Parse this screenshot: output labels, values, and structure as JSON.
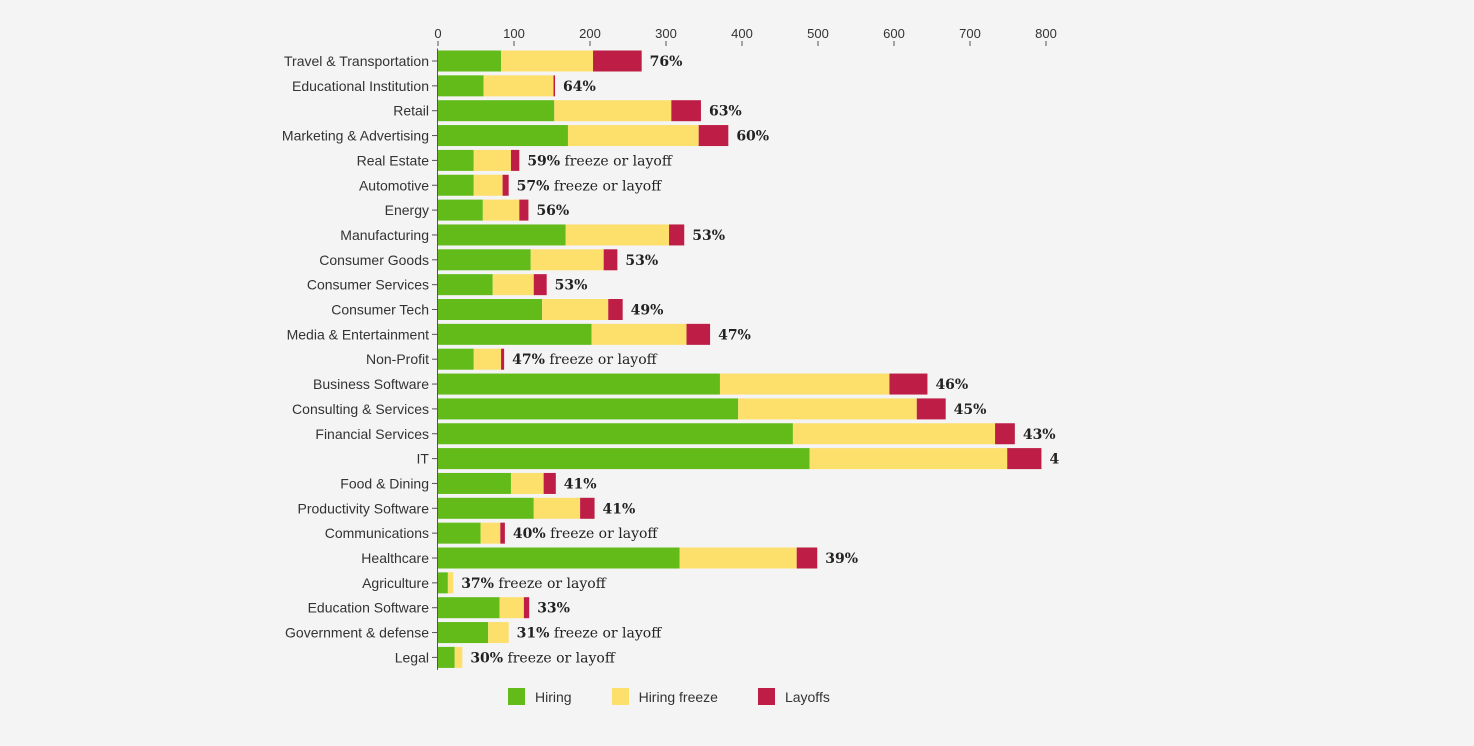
{
  "chart_data": {
    "type": "bar",
    "stacked": true,
    "orientation": "horizontal",
    "x_ticks": [
      0,
      100,
      200,
      300,
      400,
      500,
      600,
      700,
      800
    ],
    "xlim": [
      0,
      800
    ],
    "categories": [
      "Travel & Transportation",
      "Educational Institution",
      "Retail",
      "Marketing & Advertising",
      "Real Estate",
      "Automotive",
      "Energy",
      "Manufacturing",
      "Consumer Goods",
      "Consumer Services",
      "Consumer Tech",
      "Media & Entertainment",
      "Non-Profit",
      "Business Software",
      "Consulting & Services",
      "Financial Services",
      "IT",
      "Food & Dining",
      "Productivity Software",
      "Communications",
      "Healthcare",
      "Agriculture",
      "Education Software",
      "Government & defense",
      "Legal"
    ],
    "series": [
      {
        "name": "Hiring",
        "color": "#62bb19",
        "values": [
          83,
          60,
          153,
          171,
          47,
          47,
          59,
          168,
          122,
          72,
          137,
          202,
          47,
          371,
          395,
          467,
          489,
          96,
          126,
          56,
          318,
          13,
          81,
          66,
          22
        ]
      },
      {
        "name": "Hiring freeze",
        "color": "#fddf6b",
        "values": [
          121,
          92,
          154,
          172,
          49,
          38,
          48,
          136,
          96,
          54,
          87,
          125,
          36,
          223,
          235,
          266,
          260,
          43,
          61,
          26,
          154,
          7,
          32,
          27,
          10
        ]
      },
      {
        "name": "Layoffs",
        "color": "#be1e45",
        "values": [
          64,
          2,
          39,
          39,
          11,
          8,
          12,
          20,
          18,
          17,
          19,
          31,
          4,
          50,
          38,
          26,
          45,
          16,
          19,
          6,
          27,
          0,
          7,
          0,
          0
        ]
      }
    ],
    "labels": [
      {
        "pct": "76%",
        "suffix": ""
      },
      {
        "pct": "64%",
        "suffix": ""
      },
      {
        "pct": "63%",
        "suffix": ""
      },
      {
        "pct": "60%",
        "suffix": ""
      },
      {
        "pct": "59%",
        "suffix": " freeze or layoff"
      },
      {
        "pct": "57%",
        "suffix": " freeze or layoff"
      },
      {
        "pct": "56%",
        "suffix": ""
      },
      {
        "pct": "53%",
        "suffix": ""
      },
      {
        "pct": "53%",
        "suffix": ""
      },
      {
        "pct": "53%",
        "suffix": ""
      },
      {
        "pct": "49%",
        "suffix": ""
      },
      {
        "pct": "47%",
        "suffix": ""
      },
      {
        "pct": "47%",
        "suffix": " freeze or layoff"
      },
      {
        "pct": "46%",
        "suffix": ""
      },
      {
        "pct": "45%",
        "suffix": ""
      },
      {
        "pct": "43%",
        "suffix": ""
      },
      {
        "pct": "4",
        "suffix": ""
      },
      {
        "pct": "41%",
        "suffix": ""
      },
      {
        "pct": "41%",
        "suffix": ""
      },
      {
        "pct": "40%",
        "suffix": " freeze or layoff"
      },
      {
        "pct": "39%",
        "suffix": ""
      },
      {
        "pct": "37%",
        "suffix": " freeze or layoff"
      },
      {
        "pct": "33%",
        "suffix": ""
      },
      {
        "pct": "31%",
        "suffix": " freeze or layoff"
      },
      {
        "pct": "30%",
        "suffix": " freeze or layoff"
      }
    ],
    "legend_position": "bottom",
    "grid": false
  },
  "legend": {
    "items": [
      {
        "label": "Hiring",
        "color": "#62bb19"
      },
      {
        "label": "Hiring freeze",
        "color": "#fddf6b"
      },
      {
        "label": "Layoffs",
        "color": "#be1e45"
      }
    ]
  }
}
